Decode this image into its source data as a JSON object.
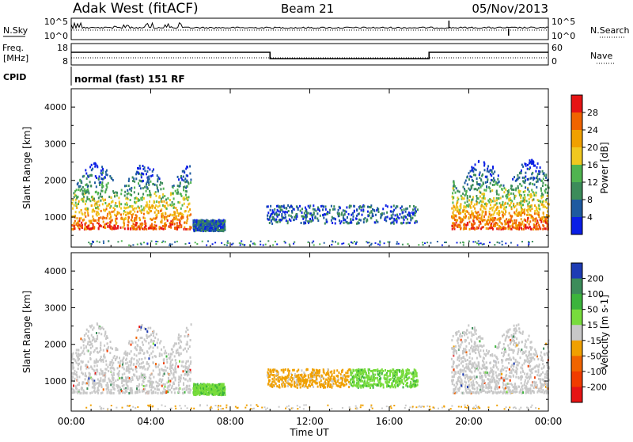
{
  "header": {
    "station": "Adak West (fitACF)",
    "beam": "Beam 21",
    "date": "05/Nov/2013"
  },
  "top_panels": {
    "noise": {
      "left_label": "N.Sky",
      "right_label": "N.Search",
      "left_ticks": [
        "10^5",
        "10^0"
      ],
      "right_ticks": [
        "10^5",
        "10^0"
      ]
    },
    "freq": {
      "left_label_line1": "Freq.",
      "left_label_line2": "[MHz]",
      "left_ticks": [
        "18",
        "8"
      ],
      "right_label": "Nave",
      "right_ticks": [
        "60",
        "0"
      ]
    },
    "cpid_label": "CPID",
    "cpid_text": "normal (fast) 151 RF"
  },
  "chart_data": [
    {
      "type": "heatmap",
      "title": "",
      "ylabel": "Slant Range [km]",
      "xlabel": "",
      "xlim": [
        "00:00",
        "24:00"
      ],
      "ylim": [
        180,
        4500
      ],
      "y_ticks": [
        "1000",
        "2000",
        "3000",
        "4000"
      ],
      "colorbar": {
        "label": "Power [dB]",
        "ticks": [
          "4",
          "8",
          "12",
          "16",
          "20",
          "24",
          "28"
        ],
        "colors": [
          "#0a1ee6",
          "#1e5aa0",
          "#3c8c5a",
          "#50b450",
          "#f0c820",
          "#f0a000",
          "#f06400",
          "#e61414"
        ]
      },
      "features": [
        {
          "start_h": 0.0,
          "end_h": 6.0,
          "range_km": [
            700,
            2500
          ],
          "level": "strong"
        },
        {
          "start_h": 6.1,
          "end_h": 7.7,
          "range_km": [
            650,
            950
          ],
          "level": "weak"
        },
        {
          "start_h": 9.8,
          "end_h": 17.4,
          "range_km": [
            850,
            1350
          ],
          "level": "weak"
        },
        {
          "start_h": 19.1,
          "end_h": 24.0,
          "range_km": [
            700,
            2600
          ],
          "level": "strong"
        }
      ]
    },
    {
      "type": "heatmap",
      "title": "",
      "ylabel": "Slant Range [km]",
      "xlabel": "Time UT",
      "xlim": [
        "00:00",
        "24:00"
      ],
      "ylim": [
        180,
        4500
      ],
      "y_ticks": [
        "1000",
        "2000",
        "3000",
        "4000"
      ],
      "x_ticks": [
        "00:00",
        "04:00",
        "08:00",
        "12:00",
        "16:00",
        "20:00",
        "00:00"
      ],
      "colorbar": {
        "label": "Velocity [m s-1]",
        "ticks": [
          "200",
          "100",
          "50",
          "15",
          "-15",
          "-50",
          "-100",
          "-200"
        ],
        "colors": [
          "#1e3cb4",
          "#3c8c5a",
          "#3cb43c",
          "#78dc3c",
          "#c8c8c8",
          "#f0a000",
          "#f06400",
          "#f03c00",
          "#e61414"
        ]
      },
      "features": [
        {
          "start_h": 0.0,
          "end_h": 6.0,
          "range_km": [
            700,
            2600
          ],
          "velocity": "ground scatter"
        },
        {
          "start_h": 6.1,
          "end_h": 7.7,
          "range_km": [
            650,
            950
          ],
          "velocity": "15 to 50"
        },
        {
          "start_h": 9.8,
          "end_h": 14.0,
          "range_km": [
            850,
            1350
          ],
          "velocity": "-15 to -50"
        },
        {
          "start_h": 14.0,
          "end_h": 17.4,
          "range_km": [
            850,
            1350
          ],
          "velocity": "15 to 50"
        },
        {
          "start_h": 19.1,
          "end_h": 24.0,
          "range_km": [
            700,
            2600
          ],
          "velocity": "ground scatter"
        }
      ]
    }
  ]
}
